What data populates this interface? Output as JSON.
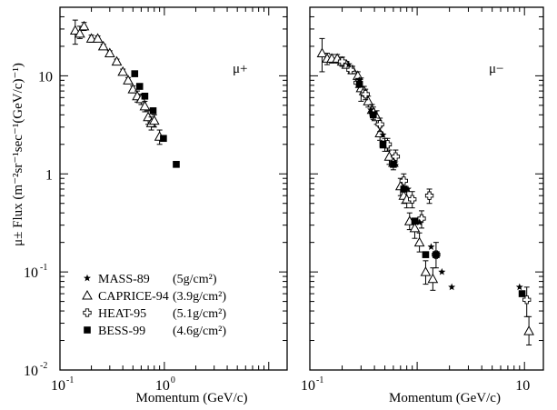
{
  "chart_data": {
    "type": "scatter",
    "ylabel": "μ± Flux (m⁻²sr⁻¹sec⁻¹(GeV/c)⁻¹)",
    "x_scale": "log",
    "y_scale": "log",
    "grid": false,
    "legend_position": "bottom-left",
    "panels": [
      {
        "label": "μ+",
        "xlabel": "Momentum (GeV/c)",
        "xlim": [
          0.1,
          15
        ],
        "ylim": [
          0.01,
          50
        ],
        "x_ticks": [
          {
            "v": 0.1,
            "t": "10"
          },
          {
            "v": 1,
            "t": "10"
          }
        ],
        "y_ticks": [
          {
            "v": 0.01,
            "t": "10"
          },
          {
            "v": 0.1,
            "t": "10"
          },
          {
            "v": 1,
            "t": "1"
          },
          {
            "v": 10,
            "t": "10"
          }
        ],
        "series": [
          {
            "name": "CAPRICE-94",
            "marker": "triangle",
            "points": [
              {
                "x": 0.14,
                "y": 29,
                "lo": 21,
                "hi": 37
              },
              {
                "x": 0.155,
                "y": 27,
                "lo": 24,
                "hi": 32
              },
              {
                "x": 0.17,
                "y": 32,
                "lo": 29,
                "hi": 35
              },
              {
                "x": 0.2,
                "y": 24,
                "lo": 22,
                "hi": 26
              },
              {
                "x": 0.23,
                "y": 24,
                "lo": 22.5,
                "hi": 25.5
              },
              {
                "x": 0.26,
                "y": 20,
                "lo": 19,
                "hi": 21
              },
              {
                "x": 0.3,
                "y": 17,
                "lo": 16,
                "hi": 18
              },
              {
                "x": 0.35,
                "y": 14,
                "lo": 13.2,
                "hi": 14.8
              },
              {
                "x": 0.4,
                "y": 11,
                "lo": 10.3,
                "hi": 11.7
              },
              {
                "x": 0.45,
                "y": 9,
                "lo": 8.4,
                "hi": 9.6
              },
              {
                "x": 0.5,
                "y": 7.3,
                "lo": 6.7,
                "hi": 7.9
              },
              {
                "x": 0.55,
                "y": 6.2,
                "lo": 5.4,
                "hi": 7.0
              },
              {
                "x": 0.6,
                "y": 5.8,
                "lo": 5.1,
                "hi": 6.5
              },
              {
                "x": 0.65,
                "y": 4.9,
                "lo": 4.3,
                "hi": 5.5
              },
              {
                "x": 0.7,
                "y": 3.8,
                "lo": 3.2,
                "hi": 4.4
              },
              {
                "x": 0.75,
                "y": 3.3,
                "lo": 2.8,
                "hi": 3.8
              },
              {
                "x": 0.8,
                "y": 3.5,
                "lo": 3.0,
                "hi": 4.0
              },
              {
                "x": 0.9,
                "y": 2.4,
                "lo": 2.0,
                "hi": 2.8
              }
            ]
          },
          {
            "name": "BESS-99",
            "marker": "square",
            "points": [
              {
                "x": 0.52,
                "y": 10.5
              },
              {
                "x": 0.58,
                "y": 7.8
              },
              {
                "x": 0.65,
                "y": 6.2
              },
              {
                "x": 0.78,
                "y": 4.4
              },
              {
                "x": 0.98,
                "y": 2.3
              },
              {
                "x": 1.3,
                "y": 1.25
              }
            ]
          }
        ]
      },
      {
        "label": "μ−",
        "xlabel": "Momentum (GeV/c)",
        "xlim": [
          0.1,
          15
        ],
        "ylim": [
          0.01,
          50
        ],
        "x_ticks": [
          {
            "v": 0.1,
            "t": "10"
          },
          {
            "v": 10,
            "t": "10"
          }
        ],
        "y_ticks": [],
        "series": [
          {
            "name": "CAPRICE-94",
            "marker": "triangle",
            "points": [
              {
                "x": 0.13,
                "y": 17,
                "lo": 11,
                "hi": 24
              },
              {
                "x": 0.145,
                "y": 15,
                "lo": 13,
                "hi": 17
              },
              {
                "x": 0.16,
                "y": 15,
                "lo": 13.5,
                "hi": 16.5
              },
              {
                "x": 0.18,
                "y": 15,
                "lo": 13.5,
                "hi": 16.5
              },
              {
                "x": 0.2,
                "y": 14,
                "lo": 12.5,
                "hi": 15.5
              },
              {
                "x": 0.22,
                "y": 13,
                "lo": 12,
                "hi": 14
              },
              {
                "x": 0.25,
                "y": 11.5,
                "lo": 10.5,
                "hi": 12.5
              },
              {
                "x": 0.28,
                "y": 10,
                "lo": 9,
                "hi": 11
              },
              {
                "x": 0.3,
                "y": 7.5,
                "lo": 5.5,
                "hi": 9.5
              },
              {
                "x": 0.32,
                "y": 7.0,
                "lo": 6.2,
                "hi": 7.8
              },
              {
                "x": 0.35,
                "y": 5.5,
                "lo": 4.8,
                "hi": 6.2
              },
              {
                "x": 0.38,
                "y": 4.5,
                "lo": 3.9,
                "hi": 5.1
              },
              {
                "x": 0.42,
                "y": 3.8,
                "lo": 3.2,
                "hi": 4.4
              },
              {
                "x": 0.45,
                "y": 2.6,
                "lo": 2.2,
                "hi": 3.0
              },
              {
                "x": 0.5,
                "y": 2.0,
                "lo": 1.7,
                "hi": 2.3
              },
              {
                "x": 0.55,
                "y": 1.5,
                "lo": 1.25,
                "hi": 1.75
              },
              {
                "x": 0.6,
                "y": 1.3,
                "lo": 1.1,
                "hi": 1.5
              },
              {
                "x": 0.7,
                "y": 0.75,
                "lo": 0.6,
                "hi": 0.9
              },
              {
                "x": 0.75,
                "y": 0.6,
                "lo": 0.5,
                "hi": 0.72
              },
              {
                "x": 0.8,
                "y": 0.55,
                "lo": 0.45,
                "hi": 0.66
              },
              {
                "x": 0.85,
                "y": 0.33,
                "lo": 0.27,
                "hi": 0.4
              },
              {
                "x": 0.95,
                "y": 0.28,
                "lo": 0.22,
                "hi": 0.34
              },
              {
                "x": 1.05,
                "y": 0.2,
                "lo": 0.16,
                "hi": 0.25
              },
              {
                "x": 1.2,
                "y": 0.1,
                "lo": 0.075,
                "hi": 0.13
              },
              {
                "x": 1.4,
                "y": 0.085,
                "lo": 0.065,
                "hi": 0.11
              },
              {
                "x": 11.0,
                "y": 0.025,
                "lo": 0.018,
                "hi": 0.035
              }
            ]
          },
          {
            "name": "HEAT-95",
            "marker": "cross",
            "points": [
              {
                "x": 0.2,
                "y": 14,
                "lo": 12.5,
                "hi": 15.5
              },
              {
                "x": 0.24,
                "y": 11.5,
                "lo": 10.5,
                "hi": 12.5
              },
              {
                "x": 0.28,
                "y": 8.5,
                "lo": 7.6,
                "hi": 9.4
              },
              {
                "x": 0.33,
                "y": 6.5,
                "lo": 5.7,
                "hi": 7.3
              },
              {
                "x": 0.39,
                "y": 4.2,
                "lo": 3.6,
                "hi": 4.8
              },
              {
                "x": 0.45,
                "y": 3.2,
                "lo": 2.7,
                "hi": 3.7
              },
              {
                "x": 0.53,
                "y": 2.0,
                "lo": 1.7,
                "hi": 2.3
              },
              {
                "x": 0.63,
                "y": 1.5,
                "lo": 1.25,
                "hi": 1.75
              },
              {
                "x": 0.75,
                "y": 0.85,
                "lo": 0.7,
                "hi": 1.0
              },
              {
                "x": 0.9,
                "y": 0.55,
                "lo": 0.45,
                "hi": 0.66
              },
              {
                "x": 1.1,
                "y": 0.35,
                "lo": 0.28,
                "hi": 0.42
              },
              {
                "x": 1.3,
                "y": 0.6,
                "lo": 0.5,
                "hi": 0.7
              },
              {
                "x": 1.5,
                "y": 0.15,
                "lo": 0.11,
                "hi": 0.2
              },
              {
                "x": 10.5,
                "y": 0.052,
                "lo": 0.035,
                "hi": 0.07
              }
            ]
          },
          {
            "name": "MASS-89",
            "marker": "star",
            "points": [
              {
                "x": 0.23,
                "y": 13
              },
              {
                "x": 0.29,
                "y": 9
              },
              {
                "x": 0.37,
                "y": 4.5
              },
              {
                "x": 0.48,
                "y": 2.5
              },
              {
                "x": 0.62,
                "y": 1.3
              },
              {
                "x": 0.82,
                "y": 0.7
              },
              {
                "x": 1.05,
                "y": 0.32
              },
              {
                "x": 1.35,
                "y": 0.18
              },
              {
                "x": 1.7,
                "y": 0.1
              },
              {
                "x": 2.1,
                "y": 0.07
              },
              {
                "x": 9.0,
                "y": 0.07
              }
            ]
          },
          {
            "name": "BESS-99",
            "marker": "square",
            "points": [
              {
                "x": 0.29,
                "y": 8.2
              },
              {
                "x": 0.39,
                "y": 4.0
              },
              {
                "x": 0.48,
                "y": 2.0
              },
              {
                "x": 0.6,
                "y": 1.25
              },
              {
                "x": 0.75,
                "y": 0.7
              },
              {
                "x": 0.95,
                "y": 0.33
              },
              {
                "x": 1.2,
                "y": 0.15
              },
              {
                "x": 1.5,
                "y": 0.15
              },
              {
                "x": 9.5,
                "y": 0.06
              }
            ]
          }
        ]
      }
    ],
    "legend": [
      {
        "name": "MASS-89",
        "marker": "star",
        "depth": "(5g/cm²)"
      },
      {
        "name": "CAPRICE-94",
        "marker": "triangle",
        "depth": "(3.9g/cm²)"
      },
      {
        "name": "HEAT-95",
        "marker": "cross",
        "depth": "(5.1g/cm²)"
      },
      {
        "name": "BESS-99",
        "marker": "square",
        "depth": "(4.6g/cm²)"
      }
    ],
    "colors": {
      "ink": "#000000",
      "background": "#ffffff"
    }
  }
}
